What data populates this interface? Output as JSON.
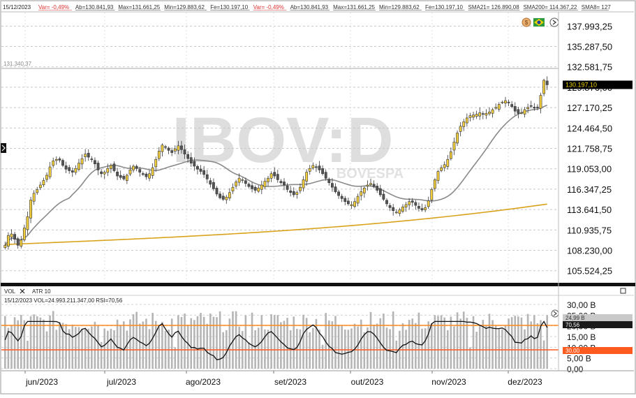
{
  "header": {
    "date": "15/12/2023",
    "items": [
      {
        "text": "Var= -0,49%",
        "color": "#e03030"
      },
      {
        "text": "Ab=130.841,93",
        "color": "#333333"
      },
      {
        "text": "Max=131.661,25",
        "color": "#333333"
      },
      {
        "text": "Min=129.883,62",
        "color": "#333333"
      },
      {
        "text": "Fe=130.197,10",
        "color": "#333333"
      },
      {
        "text": "Var= -0,49%",
        "color": "#e03030"
      },
      {
        "text": "Ab=130.841,93",
        "color": "#333333"
      },
      {
        "text": "Max=131.661,25",
        "color": "#333333"
      },
      {
        "text": "Min=129.883,62",
        "color": "#333333"
      },
      {
        "text": "Fe=130.197,10",
        "color": "#333333"
      },
      {
        "text": "SMA21= 126.890,08",
        "color": "#333333"
      },
      {
        "text": "SMA200= 114.367,22",
        "color": "#333333"
      },
      {
        "text": "SMA8= 127",
        "color": "#333333"
      }
    ]
  },
  "watermark": {
    "ticker": "IBOV:D",
    "exchange": "BOVESPA"
  },
  "icons": [
    "currency-icon",
    "flag-brazil-icon",
    "arrow-icon"
  ],
  "top_ref_label": "131.340,37",
  "price_tag": "130.197,10",
  "lower_panel": {
    "tabs": [
      "VOL",
      "ATR 10"
    ],
    "header": "15/12/2023  VOL=24.993.211.347,00  RSI=70,56",
    "vol_tag": "24,99 B",
    "rsi_tag": "70,56",
    "rsi_low_tag": "30,00"
  },
  "colors": {
    "up": "#f2ce3d",
    "down": "#555555",
    "sma21": "#8a8a8a",
    "sma200": "#d9a21b",
    "vol_bar": "#b5b5b5",
    "rsi_line": "#111111",
    "rsi_high": "#ff8c1a",
    "rsi_low": "#ff5a1f",
    "price_tag_bg": "#000000",
    "price_tag_fg": "#f2d200"
  },
  "chart_data": [
    {
      "type": "candlestick",
      "title": "IBOV:D",
      "x_axis_labels": [
        "jun/2023",
        "jul/2023",
        "ago/2023",
        "set/2023",
        "out/2023",
        "nov/2023",
        "dez/2023"
      ],
      "y_ticks": [
        137993.25,
        135287.5,
        132581.75,
        129876.0,
        127170.25,
        124464.5,
        121758.75,
        119053.0,
        116347.25,
        113641.5,
        110935.75,
        108230.0,
        105524.25
      ],
      "y_tick_labels": [
        "137.993,25",
        "135.287,50",
        "132.581,75",
        "129.876,00",
        "127.170,25",
        "124.464,50",
        "121.758,75",
        "119.053,00",
        "116.347,25",
        "113.641,50",
        "110.935,75",
        "108.230,00",
        "105.524,25"
      ],
      "ylim": [
        104200,
        139600
      ],
      "close_series": [
        108900,
        110200,
        110400,
        109700,
        108900,
        109600,
        111200,
        112700,
        114900,
        115800,
        116300,
        116900,
        117500,
        118200,
        119300,
        120100,
        120300,
        120200,
        119500,
        119000,
        118800,
        118600,
        119100,
        119800,
        120400,
        121000,
        120600,
        120300,
        119700,
        118900,
        118400,
        118600,
        119100,
        119500,
        118800,
        118100,
        117900,
        117700,
        118200,
        118900,
        119400,
        119100,
        118600,
        118300,
        118000,
        118400,
        119200,
        120300,
        121400,
        122200,
        121900,
        121500,
        121200,
        121700,
        122100,
        121600,
        121000,
        120400,
        119800,
        119400,
        119000,
        118700,
        118300,
        117700,
        117000,
        116400,
        115700,
        115200,
        115000,
        115300,
        115900,
        116600,
        117300,
        117800,
        117600,
        117100,
        116700,
        116400,
        116200,
        116500,
        116900,
        117400,
        117800,
        118400,
        118100,
        117600,
        117200,
        116900,
        116300,
        115900,
        115600,
        115900,
        116600,
        117600,
        118600,
        119100,
        119500,
        119300,
        118900,
        118400,
        117800,
        117200,
        116600,
        116000,
        115500,
        115100,
        114700,
        114400,
        114300,
        114700,
        115400,
        116000,
        116500,
        116900,
        117100,
        116700,
        116200,
        115600,
        115000,
        114400,
        113900,
        113500,
        113300,
        113600,
        114000,
        114300,
        114700,
        114600,
        114200,
        113800,
        113600,
        113900,
        114800,
        116300,
        117600,
        118700,
        119200,
        119600,
        120300,
        121300,
        122600,
        123800,
        124700,
        125300,
        125800,
        126100,
        126200,
        126300,
        126500,
        126300,
        126400,
        126600,
        126900,
        127200,
        127600,
        127900,
        128100,
        127800,
        127300,
        126700,
        126400,
        126500,
        126900,
        127200,
        127400,
        127100,
        127200,
        128800,
        130800,
        130197.1
      ],
      "series": [
        {
          "name": "SMA21",
          "value_last": 126890.08
        },
        {
          "name": "SMA200",
          "value_last": 114367.22
        }
      ]
    },
    {
      "type": "bar",
      "series": [
        {
          "name": "VOL",
          "value_last": 24993211347.0
        }
      ],
      "y_tick_labels": [
        "30,00 B",
        "25,00 B",
        "20,00 B",
        "15,00 B",
        "10,00 B",
        "5,00 B",
        "0,00"
      ],
      "ylim": [
        0,
        30
      ],
      "y_unit": "B"
    },
    {
      "type": "line",
      "series": [
        {
          "name": "RSI",
          "value_last": 70.56
        }
      ],
      "reference_lines": [
        70,
        30
      ]
    }
  ]
}
